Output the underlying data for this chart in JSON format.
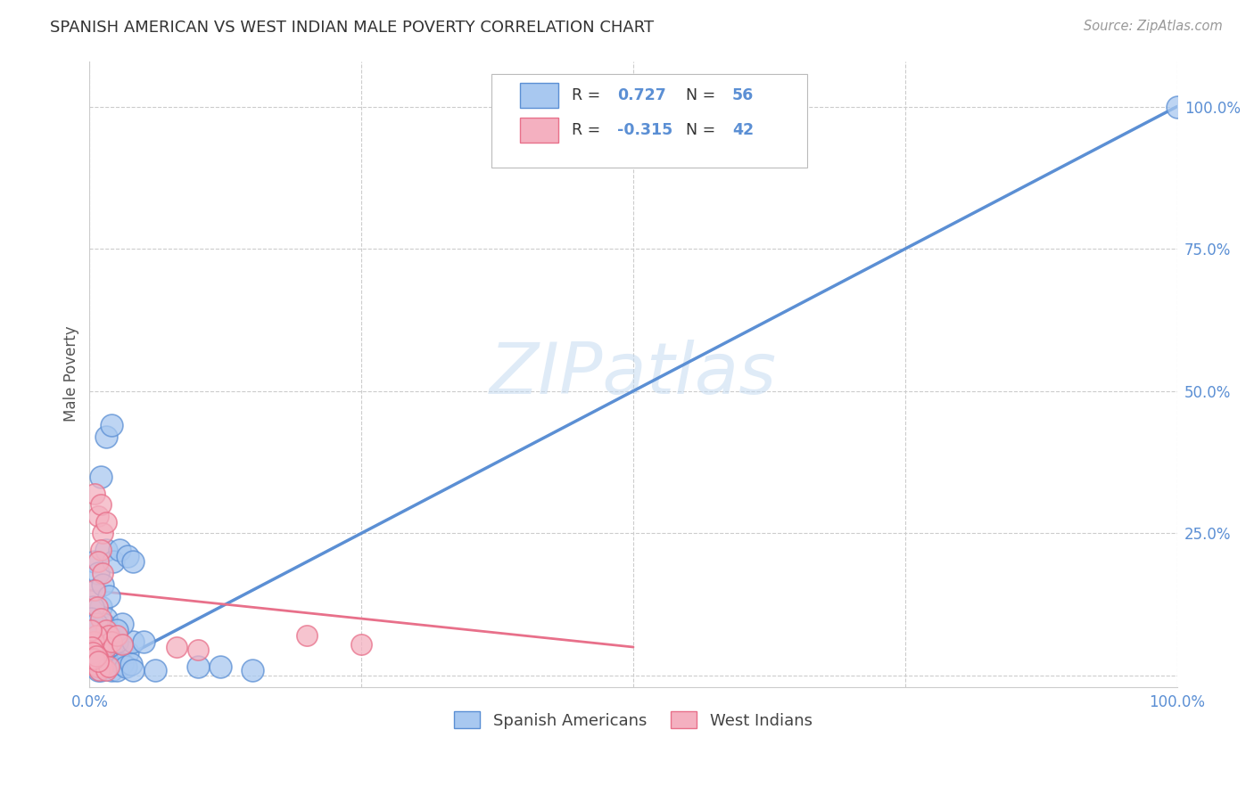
{
  "title": "SPANISH AMERICAN VS WEST INDIAN MALE POVERTY CORRELATION CHART",
  "source": "Source: ZipAtlas.com",
  "ylabel": "Male Poverty",
  "watermark": "ZIPatlas",
  "blue_scatter": [
    [
      1.0,
      35.0
    ],
    [
      1.5,
      42.0
    ],
    [
      2.0,
      44.0
    ],
    [
      0.5,
      15.0
    ],
    [
      1.0,
      12.0
    ],
    [
      1.5,
      10.0
    ],
    [
      0.8,
      8.0
    ],
    [
      1.2,
      7.0
    ],
    [
      1.8,
      6.0
    ],
    [
      2.5,
      5.0
    ],
    [
      3.0,
      5.0
    ],
    [
      3.5,
      4.0
    ],
    [
      0.5,
      20.0
    ],
    [
      0.8,
      18.0
    ],
    [
      1.2,
      16.0
    ],
    [
      1.5,
      22.0
    ],
    [
      1.8,
      14.0
    ],
    [
      2.2,
      20.0
    ],
    [
      2.8,
      22.0
    ],
    [
      3.5,
      21.0
    ],
    [
      4.0,
      20.0
    ],
    [
      0.5,
      2.0
    ],
    [
      0.8,
      1.0
    ],
    [
      1.0,
      1.0
    ],
    [
      1.2,
      1.5
    ],
    [
      1.5,
      2.0
    ],
    [
      1.8,
      1.5
    ],
    [
      2.0,
      1.0
    ],
    [
      2.5,
      1.0
    ],
    [
      3.0,
      2.0
    ],
    [
      3.3,
      1.5
    ],
    [
      3.8,
      2.0
    ],
    [
      4.0,
      1.0
    ],
    [
      6.0,
      1.0
    ],
    [
      10.0,
      1.5
    ],
    [
      0.5,
      6.0
    ],
    [
      0.8,
      7.0
    ],
    [
      1.0,
      8.0
    ],
    [
      1.3,
      9.0
    ],
    [
      1.8,
      7.0
    ],
    [
      2.3,
      6.0
    ],
    [
      2.5,
      6.0
    ],
    [
      0.7,
      4.0
    ],
    [
      0.9,
      3.0
    ],
    [
      0.4,
      5.0
    ],
    [
      0.3,
      12.0
    ],
    [
      4.0,
      6.0
    ],
    [
      5.0,
      6.0
    ],
    [
      3.0,
      9.0
    ],
    [
      2.5,
      8.0
    ],
    [
      0.1,
      10.0
    ],
    [
      0.2,
      8.0
    ],
    [
      0.6,
      9.0
    ],
    [
      100.0,
      100.0
    ],
    [
      15.0,
      1.0
    ],
    [
      12.0,
      1.5
    ]
  ],
  "pink_scatter": [
    [
      0.5,
      32.0
    ],
    [
      0.8,
      28.0
    ],
    [
      1.0,
      30.0
    ],
    [
      1.2,
      25.0
    ],
    [
      1.5,
      27.0
    ],
    [
      1.0,
      22.0
    ],
    [
      0.8,
      20.0
    ],
    [
      1.2,
      18.0
    ],
    [
      0.5,
      15.0
    ],
    [
      0.7,
      12.0
    ],
    [
      1.0,
      10.0
    ],
    [
      1.5,
      8.0
    ],
    [
      1.8,
      7.0
    ],
    [
      0.5,
      6.0
    ],
    [
      0.8,
      5.0
    ],
    [
      1.0,
      4.5
    ],
    [
      1.5,
      5.0
    ],
    [
      2.0,
      6.0
    ],
    [
      2.5,
      7.0
    ],
    [
      3.0,
      5.5
    ],
    [
      0.5,
      4.0
    ],
    [
      0.8,
      3.0
    ],
    [
      1.0,
      2.0
    ],
    [
      1.2,
      1.5
    ],
    [
      0.3,
      2.0
    ],
    [
      0.5,
      2.5
    ],
    [
      0.7,
      1.5
    ],
    [
      0.9,
      1.0
    ],
    [
      1.5,
      1.0
    ],
    [
      1.8,
      1.5
    ],
    [
      0.4,
      6.0
    ],
    [
      0.6,
      7.0
    ],
    [
      0.1,
      8.0
    ],
    [
      0.2,
      5.0
    ],
    [
      0.3,
      4.0
    ],
    [
      0.4,
      3.0
    ],
    [
      0.6,
      3.5
    ],
    [
      0.8,
      2.5
    ],
    [
      20.0,
      7.0
    ],
    [
      25.0,
      5.5
    ],
    [
      8.0,
      5.0
    ],
    [
      10.0,
      4.5
    ]
  ],
  "blue_line_x": [
    0,
    100
  ],
  "blue_line_y": [
    0,
    100
  ],
  "pink_line_x": [
    0,
    50
  ],
  "pink_line_y": [
    15.0,
    5.0
  ],
  "blue_color": "#5b8fd4",
  "pink_color": "#e8708a",
  "scatter_blue_face": "#a8c8f0",
  "scatter_pink_face": "#f4b0c0",
  "bg_color": "#ffffff",
  "grid_color": "#cccccc",
  "title_color": "#333333",
  "axis_tick_color": "#5b8fd4",
  "xlim": [
    0,
    100
  ],
  "ylim": [
    -2,
    108
  ],
  "yticks": [
    0,
    25,
    50,
    75,
    100
  ],
  "xticks": [
    0,
    25,
    50,
    75,
    100
  ]
}
